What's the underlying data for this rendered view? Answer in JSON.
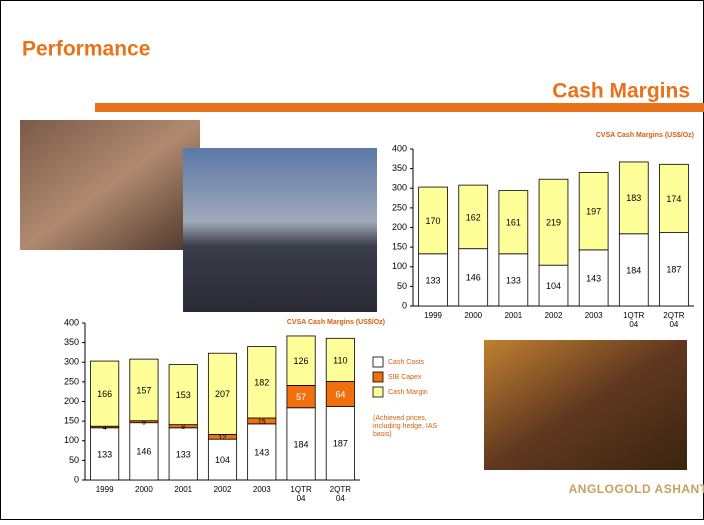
{
  "slide": {
    "title": "Performance",
    "subtitle": "Cash Margins",
    "legend_note": "(Achieved prices, including hedge, IAS basis)",
    "logo": "ANGLOGOLD ASHANTI"
  },
  "chart_data": [
    {
      "type": "stacked_bar",
      "title": "CVSA Cash Margins (US$/Oz)",
      "categories": [
        "1999",
        "2000",
        "2001",
        "2002",
        "2003",
        "1QTR 04",
        "2QTR 04"
      ],
      "series": [
        {
          "color": "#ffffff",
          "values": [
            133,
            146,
            133,
            104,
            143,
            184,
            187
          ]
        },
        {
          "color": "#ffff99",
          "values": [
            170,
            162,
            161,
            219,
            197,
            183,
            174
          ]
        }
      ],
      "ylim": [
        0,
        400
      ],
      "yticks": [
        0,
        50,
        100,
        150,
        200,
        250,
        300,
        350,
        400
      ]
    },
    {
      "type": "stacked_bar",
      "title": "CVSA Cash Margins (US$/Oz)",
      "categories": [
        "1999",
        "2000",
        "2001",
        "2002",
        "2003",
        "1QTR 04",
        "2QTR 04"
      ],
      "series": [
        {
          "name": "Cash Costs",
          "color": "#ffffff",
          "values": [
            133,
            146,
            133,
            104,
            143,
            184,
            187
          ]
        },
        {
          "name": "SIB Capex",
          "color": "#f07010",
          "values": [
            4,
            5,
            8,
            12,
            15,
            57,
            64
          ]
        },
        {
          "name": "Cash Margin",
          "color": "#ffff99",
          "values": [
            166,
            157,
            153,
            207,
            182,
            126,
            110
          ]
        }
      ],
      "ylim": [
        0,
        400
      ],
      "yticks": [
        0,
        50,
        100,
        150,
        200,
        250,
        300,
        350,
        400
      ],
      "legend": "right"
    }
  ]
}
